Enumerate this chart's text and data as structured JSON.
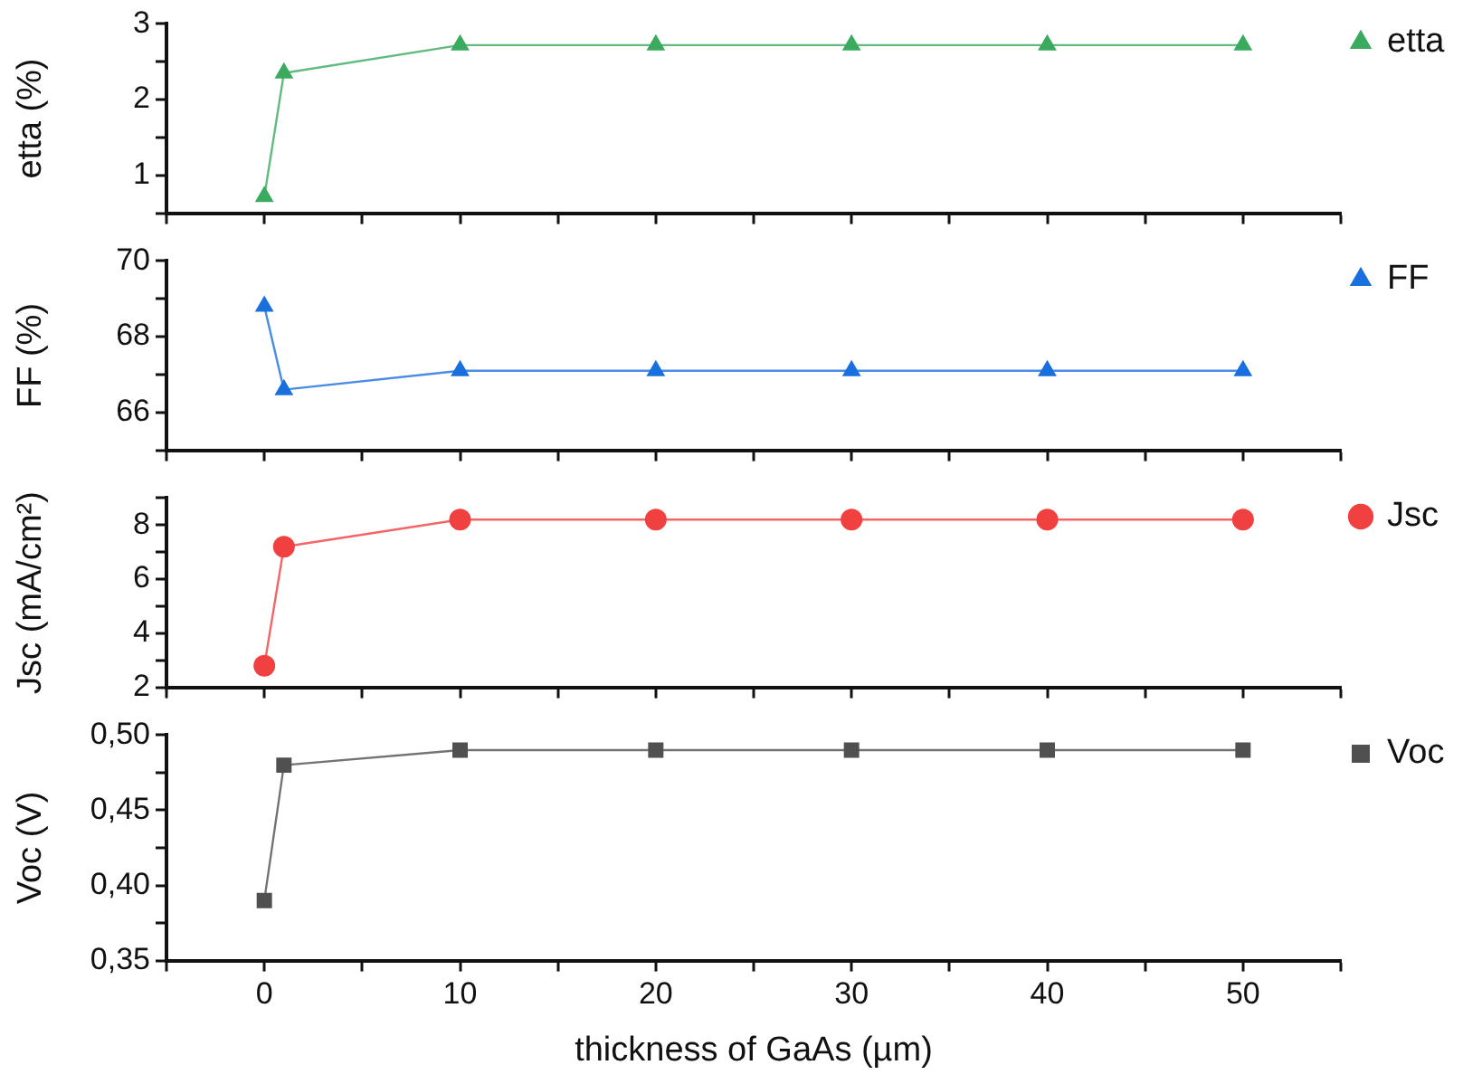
{
  "chart_data": [
    {
      "type": "line",
      "ylabel": "etta (%)",
      "x": [
        0,
        1,
        10,
        20,
        30,
        40,
        50
      ],
      "xlim": [
        -5,
        55
      ],
      "xticks": [
        {
          "value": -5,
          "label": null
        },
        0,
        {
          "value": 5,
          "label": null
        },
        10,
        {
          "value": 15,
          "label": null
        },
        20,
        {
          "value": 25,
          "label": null
        },
        30,
        {
          "value": 35,
          "label": null
        },
        40,
        {
          "value": 45,
          "label": null
        },
        50,
        {
          "value": 55,
          "label": null
        }
      ],
      "ylim": [
        0.5,
        3
      ],
      "yticks": [
        {
          "value": 0.5,
          "label": null
        },
        1,
        {
          "value": 1.5,
          "label": null
        },
        2,
        {
          "value": 2.5,
          "label": null
        },
        3
      ],
      "tick_labels": "y",
      "legend": "top right",
      "marker": "triangle",
      "grid": false,
      "series": [
        {
          "name": "etta",
          "color": "#3aaa5e",
          "values": [
            0.72,
            2.35,
            2.72,
            2.72,
            2.72,
            2.72,
            2.72
          ]
        }
      ]
    },
    {
      "type": "line",
      "ylabel": "FF (%)",
      "x": [
        0,
        1,
        10,
        20,
        30,
        40,
        50
      ],
      "xlim": [
        -5,
        55
      ],
      "xticks": [
        {
          "value": -5,
          "label": null
        },
        0,
        {
          "value": 5,
          "label": null
        },
        10,
        {
          "value": 15,
          "label": null
        },
        20,
        {
          "value": 25,
          "label": null
        },
        30,
        {
          "value": 35,
          "label": null
        },
        40,
        {
          "value": 45,
          "label": null
        },
        50,
        {
          "value": 55,
          "label": null
        }
      ],
      "ylim": [
        65,
        70
      ],
      "yticks": [
        {
          "value": 65,
          "label": null
        },
        66,
        {
          "value": 67,
          "label": null
        },
        68,
        {
          "value": 69,
          "label": null
        },
        70
      ],
      "tick_labels": "y",
      "legend": "top right",
      "marker": "triangle",
      "grid": false,
      "series": [
        {
          "name": "FF",
          "color": "#1a6fdf",
          "values": [
            68.8,
            66.6,
            67.1,
            67.1,
            67.1,
            67.1,
            67.1
          ]
        }
      ]
    },
    {
      "type": "line",
      "ylabel": "Jsc (mA/cm²)",
      "x": [
        0,
        1,
        10,
        20,
        30,
        40,
        50
      ],
      "xlim": [
        -5,
        55
      ],
      "xticks": [
        {
          "value": -5,
          "label": null
        },
        0,
        {
          "value": 5,
          "label": null
        },
        10,
        {
          "value": 15,
          "label": null
        },
        20,
        {
          "value": 25,
          "label": null
        },
        30,
        {
          "value": 35,
          "label": null
        },
        40,
        {
          "value": 45,
          "label": null
        },
        50,
        {
          "value": 55,
          "label": null
        }
      ],
      "ylim": [
        2,
        9
      ],
      "yticks": [
        2,
        {
          "value": 3,
          "label": null
        },
        4,
        {
          "value": 5,
          "label": null
        },
        6,
        {
          "value": 7,
          "label": null
        },
        8,
        {
          "value": 9,
          "label": null
        }
      ],
      "tick_labels": "y",
      "legend": "top right",
      "marker": "circle",
      "grid": false,
      "series": [
        {
          "name": "Jsc",
          "color": "#f14040",
          "values": [
            2.8,
            7.2,
            8.2,
            8.2,
            8.2,
            8.2,
            8.2
          ]
        }
      ]
    },
    {
      "type": "line",
      "ylabel": "Voc (V)",
      "xlabel": "thickness of GaAs (µm)",
      "x": [
        0,
        1,
        10,
        20,
        30,
        40,
        50
      ],
      "xlim": [
        -5,
        55
      ],
      "xticks": [
        {
          "value": -5,
          "label": null
        },
        0,
        {
          "value": 5,
          "label": null
        },
        10,
        {
          "value": 15,
          "label": null
        },
        20,
        {
          "value": 25,
          "label": null
        },
        30,
        {
          "value": 35,
          "label": null
        },
        40,
        {
          "value": 45,
          "label": null
        },
        50,
        {
          "value": 55,
          "label": null
        }
      ],
      "ylim": [
        0.35,
        0.5
      ],
      "yticks": [
        {
          "value": 0.35,
          "label": "0,35"
        },
        {
          "value": 0.375,
          "label": null
        },
        {
          "value": 0.4,
          "label": "0,40"
        },
        {
          "value": 0.425,
          "label": null
        },
        {
          "value": 0.45,
          "label": "0,45"
        },
        {
          "value": 0.475,
          "label": null
        },
        {
          "value": 0.5,
          "label": "0,50"
        }
      ],
      "legend": "top right",
      "marker": "square",
      "grid": false,
      "series": [
        {
          "name": "Voc",
          "color": "#505050",
          "values": [
            0.39,
            0.48,
            0.49,
            0.49,
            0.49,
            0.49,
            0.49
          ]
        }
      ]
    }
  ]
}
